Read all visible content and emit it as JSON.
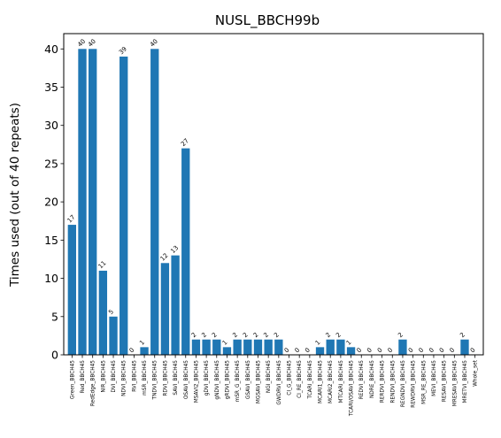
{
  "chart_data": {
    "type": "bar",
    "title": "NUSL_BBCH99b",
    "xlabel": "",
    "ylabel": "Times used (out of 40 repeats)",
    "ylim": [
      0,
      42
    ],
    "yticks": [
      0,
      5,
      10,
      15,
      20,
      25,
      30,
      35,
      40
    ],
    "grid": false,
    "bar_color": "#1f77b4",
    "categories": [
      "Green_BBCH45",
      "Red_BBCH45",
      "RedEdge_BBCH45",
      "NIR_BBCH45",
      "DVI_BBCH45",
      "NDVI_BBCH45",
      "RVI_BBCH45",
      "mSR_BBCH45",
      "TNDVI_BBCH45",
      "RDVI_BBCH45",
      "SAVI_BBCH45",
      "OSAVI_BBCH45",
      "MSAVI2_BBCH45",
      "gDVI_BBCH45",
      "gNDVI_BBCH45",
      "gRDVI_BBCH45",
      "mSR_G_BBCH45",
      "GSAVI_BBCH45",
      "MGSAVI_BBCH45",
      "NGI_BBCH45",
      "GWDRVI_BBCH45",
      "CI_G_BBCH45",
      "CI_RE_BBCH45",
      "TCARI_BBCH45",
      "MCARI1_BBCH45",
      "MCARI2_BBCH45",
      "MTCARI_BBCH45",
      "TCARI/OSAVI_BBCH45",
      "REDVI_BBCH45",
      "NDRE_BBCH45",
      "RERDVI_BBCH45",
      "RENDVI_BBCH45",
      "REGNDVI_BBCH45",
      "REWDRVI_BBCH45",
      "MSR_RE_BBCH45",
      "MEVI_BBCH45",
      "RESAVI_BBCH45",
      "MRESAVI_BBCH45",
      "MRETVI_BBCH45",
      "Whole_set"
    ],
    "values": [
      17,
      40,
      40,
      11,
      5,
      39,
      0,
      1,
      40,
      12,
      13,
      27,
      2,
      2,
      2,
      1,
      2,
      2,
      2,
      2,
      2,
      0,
      0,
      0,
      1,
      2,
      2,
      1,
      0,
      0,
      0,
      0,
      2,
      0,
      0,
      0,
      0,
      0,
      2,
      0
    ]
  }
}
